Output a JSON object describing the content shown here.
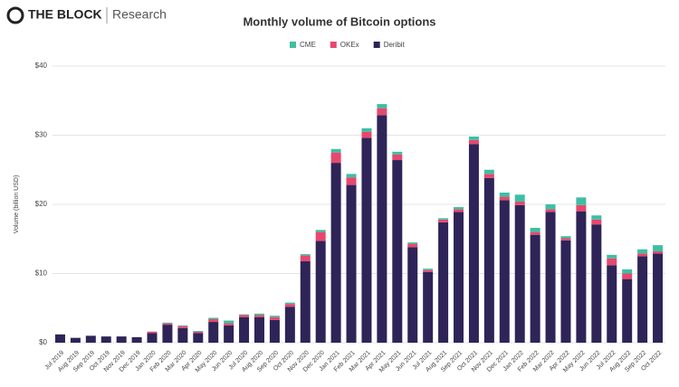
{
  "header": {
    "brand": "THE BLOCK",
    "section": "Research"
  },
  "chart_data": {
    "type": "stacked_bar",
    "title": "Monthly volume of Bitcoin options",
    "y_label": "Volume (billion USD)",
    "categories": [
      "Jul 2019",
      "Aug 2019",
      "Sep 2019",
      "Oct 2019",
      "Nov 2019",
      "Dec 2019",
      "Jan 2020",
      "Feb 2020",
      "Mar 2020",
      "Apr 2020",
      "May 2020",
      "Jun 2020",
      "Jul 2020",
      "Aug 2020",
      "Sep 2020",
      "Oct 2020",
      "Nov 2020",
      "Dec 2020",
      "Jan 2021",
      "Feb 2021",
      "Mar 2021",
      "Apr 2021",
      "May 2021",
      "Jun 2021",
      "Jul 2021",
      "Aug 2021",
      "Sep 2021",
      "Oct 2021",
      "Nov 2021",
      "Dec 2021",
      "Jan 2022",
      "Feb 2022",
      "Mar 2022",
      "Apr 2022",
      "May 2022",
      "Jun 2022",
      "Jul 2022",
      "Aug 2022",
      "Sep 2022",
      "Oct 2022"
    ],
    "series": [
      {
        "name": "CME",
        "color": "#3dbfa4",
        "values": [
          0,
          0,
          0,
          0,
          0,
          0,
          0,
          0.1,
          0.1,
          0.1,
          0.2,
          0.4,
          0.1,
          0.2,
          0.2,
          0.2,
          0.2,
          0.3,
          0.5,
          0.5,
          0.5,
          0.6,
          0.4,
          0.2,
          0.2,
          0.2,
          0.3,
          0.5,
          0.6,
          0.6,
          1.0,
          0.6,
          0.7,
          0.3,
          1.1,
          0.6,
          0.5,
          0.6,
          0.6,
          0.9
        ]
      },
      {
        "name": "OKEx",
        "color": "#e8476e",
        "values": [
          0,
          0,
          0,
          0,
          0,
          0,
          0.2,
          0.2,
          0.3,
          0.2,
          0.4,
          0.3,
          0.3,
          0.3,
          0.4,
          0.4,
          0.8,
          1.3,
          1.5,
          1.1,
          0.9,
          1.0,
          0.8,
          0.5,
          0.3,
          0.4,
          0.4,
          0.6,
          0.6,
          0.5,
          0.5,
          0.4,
          0.4,
          0.3,
          0.9,
          0.7,
          1.0,
          0.8,
          0.4,
          0.3
        ]
      },
      {
        "name": "Deribit",
        "color": "#2e2458",
        "values": [
          1.2,
          0.7,
          1.0,
          0.9,
          0.9,
          0.8,
          1.4,
          2.6,
          2.1,
          1.4,
          3.0,
          2.5,
          3.7,
          3.7,
          3.3,
          5.2,
          11.8,
          14.7,
          26.0,
          22.8,
          29.6,
          32.9,
          26.4,
          13.8,
          10.2,
          17.4,
          18.9,
          28.7,
          23.8,
          20.6,
          19.9,
          15.6,
          18.9,
          14.8,
          19.0,
          17.1,
          11.2,
          9.2,
          12.5,
          12.9
        ]
      }
    ],
    "ylim": [
      0,
      40
    ],
    "yticks": [
      {
        "value": 0,
        "label": "$0"
      },
      {
        "value": 10,
        "label": "$10"
      },
      {
        "value": 20,
        "label": "$20"
      },
      {
        "value": 30,
        "label": "$30"
      },
      {
        "value": 40,
        "label": "$40"
      }
    ],
    "grid": true
  }
}
